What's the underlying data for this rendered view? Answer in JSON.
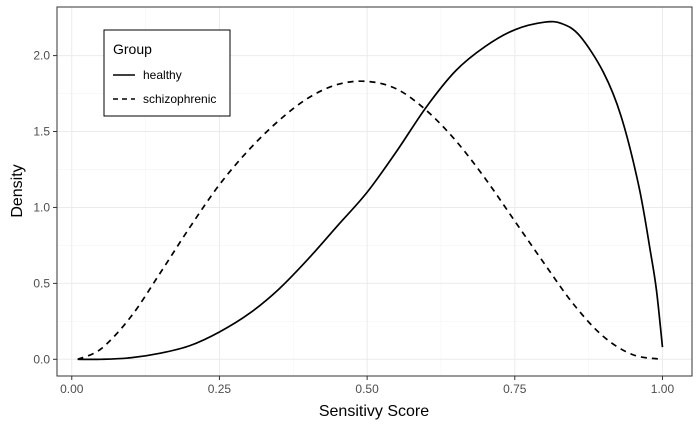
{
  "chart_data": {
    "type": "line",
    "xlabel": "Sensitivy Score",
    "ylabel": "Density",
    "xlim": [
      -0.025,
      1.05
    ],
    "ylim": [
      -0.11,
      2.32
    ],
    "x_ticks": [
      0.0,
      0.25,
      0.5,
      0.75,
      1.0
    ],
    "x_tick_labels": [
      "0.00",
      "0.25",
      "0.50",
      "0.75",
      "1.00"
    ],
    "y_ticks": [
      0.0,
      0.5,
      1.0,
      1.5,
      2.0
    ],
    "y_tick_labels": [
      "0.0",
      "0.5",
      "1.0",
      "1.5",
      "2.0"
    ],
    "grid": true,
    "legend": {
      "title": "Group",
      "position": "top-left",
      "entries": [
        {
          "label": "healthy",
          "line_style": "solid"
        },
        {
          "label": "schizophrenic",
          "line_style": "dashed"
        }
      ]
    },
    "line_color": "#000000",
    "series": [
      {
        "name": "healthy",
        "line_style": "solid",
        "x": [
          0.01,
          0.05,
          0.1,
          0.15,
          0.2,
          0.25,
          0.3,
          0.35,
          0.4,
          0.45,
          0.5,
          0.55,
          0.6,
          0.65,
          0.7,
          0.75,
          0.8,
          0.83,
          0.86,
          0.9,
          0.93,
          0.96,
          0.98,
          0.99,
          1.0
        ],
        "y": [
          0.0,
          0.0,
          0.01,
          0.04,
          0.09,
          0.18,
          0.3,
          0.46,
          0.66,
          0.88,
          1.1,
          1.37,
          1.66,
          1.9,
          2.06,
          2.17,
          2.22,
          2.21,
          2.13,
          1.89,
          1.6,
          1.14,
          0.7,
          0.45,
          0.08
        ]
      },
      {
        "name": "schizophrenic",
        "line_style": "dashed",
        "x": [
          0.01,
          0.05,
          0.1,
          0.15,
          0.2,
          0.25,
          0.3,
          0.35,
          0.4,
          0.45,
          0.5,
          0.55,
          0.6,
          0.65,
          0.7,
          0.75,
          0.8,
          0.85,
          0.9,
          0.95,
          1.0
        ],
        "y": [
          0.0,
          0.07,
          0.28,
          0.57,
          0.87,
          1.15,
          1.38,
          1.57,
          1.72,
          1.81,
          1.83,
          1.78,
          1.64,
          1.44,
          1.19,
          0.91,
          0.63,
          0.36,
          0.15,
          0.03,
          0.0
        ]
      }
    ]
  }
}
